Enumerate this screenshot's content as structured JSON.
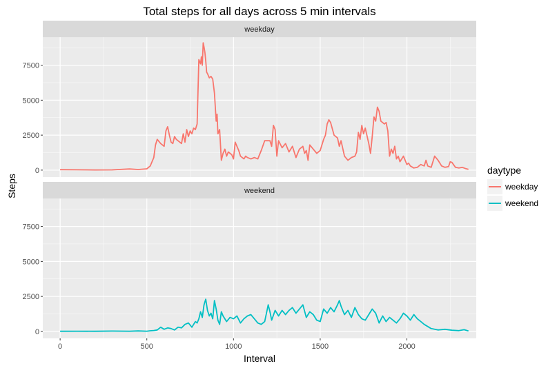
{
  "chart_data": {
    "type": "line",
    "title": "Total steps for all days across 5 min intervals",
    "xlabel": "Interval",
    "ylabel": "Steps",
    "xlim": [
      -100,
      2400
    ],
    "ylim": [
      -500,
      9500
    ],
    "x_ticks": [
      0,
      500,
      1000,
      1500,
      2000
    ],
    "y_ticks": [
      0,
      2500,
      5000,
      7500
    ],
    "x_tick_labels": [
      "0",
      "500",
      "1000",
      "1500",
      "2000"
    ],
    "y_tick_labels": [
      "0",
      "2500",
      "5000",
      "7500"
    ],
    "grid": true,
    "legend": {
      "title": "daytype",
      "position": "right",
      "entries": [
        "weekday",
        "weekend"
      ]
    },
    "colors": {
      "weekday": "#F8766D",
      "weekend": "#00BFC4",
      "panel": "#EBEBEB",
      "strip": "#D9D9D9",
      "grid": "#FFFFFF"
    },
    "panels": [
      {
        "strip": "weekday",
        "series": {
          "name": "weekday",
          "color": "#F8766D",
          "x": [
            0,
            100,
            200,
            300,
            400,
            450,
            500,
            520,
            540,
            550,
            560,
            580,
            600,
            610,
            620,
            630,
            640,
            650,
            660,
            670,
            680,
            700,
            710,
            720,
            730,
            740,
            750,
            760,
            770,
            780,
            790,
            800,
            810,
            815,
            820,
            825,
            830,
            835,
            840,
            845,
            850,
            860,
            870,
            880,
            890,
            900,
            905,
            910,
            920,
            930,
            940,
            950,
            960,
            970,
            980,
            990,
            1000,
            1010,
            1020,
            1030,
            1040,
            1050,
            1060,
            1070,
            1080,
            1100,
            1120,
            1140,
            1160,
            1180,
            1200,
            1210,
            1220,
            1230,
            1240,
            1250,
            1260,
            1280,
            1300,
            1320,
            1340,
            1360,
            1380,
            1400,
            1410,
            1420,
            1430,
            1440,
            1460,
            1480,
            1500,
            1520,
            1530,
            1540,
            1550,
            1560,
            1580,
            1600,
            1610,
            1620,
            1640,
            1660,
            1680,
            1700,
            1710,
            1720,
            1730,
            1740,
            1750,
            1760,
            1780,
            1790,
            1800,
            1810,
            1820,
            1830,
            1840,
            1850,
            1860,
            1870,
            1880,
            1890,
            1900,
            1910,
            1920,
            1930,
            1940,
            1950,
            1960,
            1980,
            2000,
            2010,
            2020,
            2040,
            2060,
            2080,
            2100,
            2110,
            2120,
            2140,
            2160,
            2180,
            2200,
            2220,
            2240,
            2250,
            2260,
            2280,
            2300,
            2320,
            2340,
            2355
          ],
          "y": [
            30,
            20,
            10,
            15,
            80,
            40,
            90,
            300,
            900,
            1800,
            2200,
            1900,
            1700,
            2800,
            3100,
            2500,
            2000,
            1900,
            2400,
            2200,
            2100,
            1900,
            2600,
            2000,
            2900,
            2400,
            2800,
            2600,
            3000,
            2900,
            3300,
            7900,
            7600,
            8100,
            7500,
            9100,
            8800,
            8400,
            7800,
            7000,
            6900,
            6600,
            6700,
            6500,
            5500,
            3500,
            4000,
            2600,
            2900,
            700,
            1200,
            1500,
            1000,
            1300,
            1200,
            1100,
            800,
            2000,
            1700,
            1400,
            1000,
            900,
            800,
            1000,
            900,
            800,
            900,
            800,
            1400,
            2100,
            2100,
            2100,
            1700,
            3200,
            2900,
            1000,
            2100,
            1600,
            1900,
            1300,
            1700,
            900,
            1500,
            1700,
            1200,
            1400,
            700,
            1800,
            1500,
            1200,
            1400,
            2200,
            2500,
            3300,
            3600,
            3400,
            2500,
            2300,
            1700,
            2100,
            1000,
            700,
            900,
            1000,
            1300,
            2700,
            2200,
            3200,
            2600,
            3000,
            1900,
            1200,
            2400,
            3800,
            3500,
            4500,
            4200,
            3500,
            3400,
            3300,
            3400,
            2800,
            1000,
            1500,
            1200,
            1700,
            800,
            1000,
            600,
            1000,
            400,
            500,
            300,
            150,
            200,
            400,
            300,
            700,
            300,
            200,
            1000,
            700,
            300,
            200,
            250,
            600,
            550,
            200,
            150,
            200,
            100,
            50
          ]
        }
      },
      {
        "strip": "weekend",
        "series": {
          "name": "weekend",
          "color": "#00BFC4",
          "x": [
            0,
            100,
            200,
            300,
            400,
            450,
            500,
            520,
            540,
            560,
            580,
            600,
            620,
            640,
            660,
            680,
            700,
            720,
            740,
            760,
            780,
            790,
            800,
            810,
            820,
            830,
            840,
            850,
            860,
            870,
            880,
            890,
            900,
            910,
            920,
            930,
            940,
            960,
            980,
            1000,
            1020,
            1040,
            1060,
            1080,
            1100,
            1120,
            1140,
            1160,
            1180,
            1200,
            1210,
            1220,
            1240,
            1260,
            1280,
            1300,
            1320,
            1340,
            1360,
            1380,
            1400,
            1420,
            1440,
            1460,
            1480,
            1500,
            1520,
            1540,
            1560,
            1580,
            1600,
            1610,
            1620,
            1640,
            1660,
            1680,
            1700,
            1720,
            1740,
            1760,
            1780,
            1800,
            1820,
            1840,
            1860,
            1880,
            1900,
            1920,
            1940,
            1960,
            1980,
            2000,
            2020,
            2040,
            2060,
            2080,
            2100,
            2140,
            2180,
            2220,
            2260,
            2300,
            2330,
            2355
          ],
          "y": [
            5,
            10,
            5,
            20,
            10,
            30,
            10,
            40,
            60,
            100,
            300,
            150,
            250,
            200,
            100,
            300,
            250,
            500,
            600,
            300,
            700,
            600,
            900,
            1400,
            1000,
            1900,
            2300,
            1500,
            1100,
            1300,
            900,
            2200,
            1600,
            800,
            500,
            1400,
            1100,
            700,
            1000,
            900,
            1100,
            600,
            900,
            1100,
            1200,
            900,
            600,
            500,
            700,
            1900,
            1400,
            800,
            1500,
            1100,
            1500,
            1200,
            1500,
            1700,
            1300,
            1600,
            1900,
            1000,
            1400,
            1200,
            800,
            700,
            1600,
            1300,
            1700,
            1400,
            1900,
            2200,
            1800,
            1200,
            1500,
            1000,
            1700,
            1200,
            900,
            800,
            1200,
            1600,
            1300,
            600,
            1100,
            700,
            1000,
            800,
            600,
            900,
            1300,
            1100,
            800,
            1200,
            900,
            700,
            500,
            200,
            100,
            150,
            80,
            50,
            120,
            30
          ]
        }
      }
    ]
  }
}
